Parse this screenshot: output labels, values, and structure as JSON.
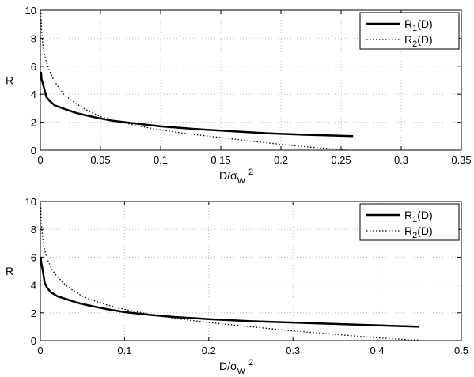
{
  "chart_data": [
    {
      "type": "line",
      "xlabel": "D/σW2",
      "xlabel_parts": {
        "main": "D/σ",
        "sub": "W",
        "sup": "2"
      },
      "ylabel": "R",
      "xlim": [
        0,
        0.35
      ],
      "ylim": [
        0,
        10
      ],
      "xticks": [
        "0",
        "0.05",
        "0.1",
        "0.15",
        "0.2",
        "0.25",
        "0.3",
        "0.35"
      ],
      "yticks": [
        "0",
        "2",
        "4",
        "6",
        "8",
        "10"
      ],
      "grid": true,
      "legend_position": "top-right",
      "series": [
        {
          "name": "R1(D)",
          "name_parts": {
            "main": "R",
            "sub": "1",
            "rest": "(D)"
          },
          "style": "solid",
          "x": [
            0.0005,
            0.001,
            0.003,
            0.005,
            0.008,
            0.012,
            0.02,
            0.03,
            0.045,
            0.06,
            0.08,
            0.1,
            0.13,
            0.16,
            0.19,
            0.22,
            0.26
          ],
          "y": [
            5.6,
            5.1,
            4.45,
            3.8,
            3.5,
            3.2,
            2.95,
            2.65,
            2.35,
            2.1,
            1.9,
            1.7,
            1.5,
            1.35,
            1.2,
            1.1,
            1.0
          ]
        },
        {
          "name": "R2(D)",
          "name_parts": {
            "main": "R",
            "sub": "2",
            "rest": "(D)"
          },
          "style": "dotted",
          "x": [
            0.0005,
            0.001,
            0.002,
            0.004,
            0.007,
            0.01,
            0.015,
            0.02,
            0.03,
            0.04,
            0.05,
            0.06,
            0.08,
            0.1,
            0.12,
            0.15,
            0.18,
            0.2,
            0.22,
            0.24,
            0.255
          ],
          "y": [
            9.8,
            8.6,
            7.6,
            6.6,
            5.8,
            5.2,
            4.5,
            3.95,
            3.3,
            2.8,
            2.4,
            2.15,
            1.75,
            1.45,
            1.2,
            0.9,
            0.6,
            0.42,
            0.25,
            0.1,
            0.0
          ]
        }
      ]
    },
    {
      "type": "line",
      "xlabel": "D/σW2",
      "xlabel_parts": {
        "main": "D/σ",
        "sub": "W",
        "sup": "2"
      },
      "ylabel": "R",
      "xlim": [
        0,
        0.5
      ],
      "ylim": [
        0,
        10
      ],
      "xticks": [
        "0",
        "0.1",
        "0.2",
        "0.3",
        "0.4",
        "0.5"
      ],
      "yticks": [
        "0",
        "2",
        "4",
        "6",
        "8",
        "10"
      ],
      "grid": true,
      "legend_position": "top-right",
      "series": [
        {
          "name": "R1(D)",
          "name_parts": {
            "main": "R",
            "sub": "1",
            "rest": "(D)"
          },
          "style": "solid",
          "x": [
            0.0005,
            0.001,
            0.003,
            0.005,
            0.008,
            0.012,
            0.02,
            0.03,
            0.045,
            0.06,
            0.08,
            0.1,
            0.13,
            0.16,
            0.2,
            0.25,
            0.3,
            0.35,
            0.4,
            0.45
          ],
          "y": [
            6.0,
            5.6,
            5.0,
            4.2,
            3.8,
            3.5,
            3.2,
            3.0,
            2.7,
            2.5,
            2.25,
            2.05,
            1.85,
            1.7,
            1.55,
            1.4,
            1.3,
            1.2,
            1.1,
            1.0
          ]
        },
        {
          "name": "R2(D)",
          "name_parts": {
            "main": "R",
            "sub": "2",
            "rest": "(D)"
          },
          "style": "dotted",
          "x": [
            0.0005,
            0.001,
            0.002,
            0.004,
            0.007,
            0.01,
            0.015,
            0.02,
            0.03,
            0.04,
            0.05,
            0.06,
            0.08,
            0.1,
            0.13,
            0.16,
            0.2,
            0.25,
            0.3,
            0.35,
            0.4,
            0.45
          ],
          "y": [
            9.8,
            8.8,
            7.8,
            6.8,
            6.1,
            5.6,
            5.0,
            4.6,
            4.0,
            3.55,
            3.2,
            2.95,
            2.55,
            2.25,
            1.9,
            1.6,
            1.3,
            1.0,
            0.7,
            0.45,
            0.2,
            0.02
          ]
        }
      ]
    }
  ]
}
